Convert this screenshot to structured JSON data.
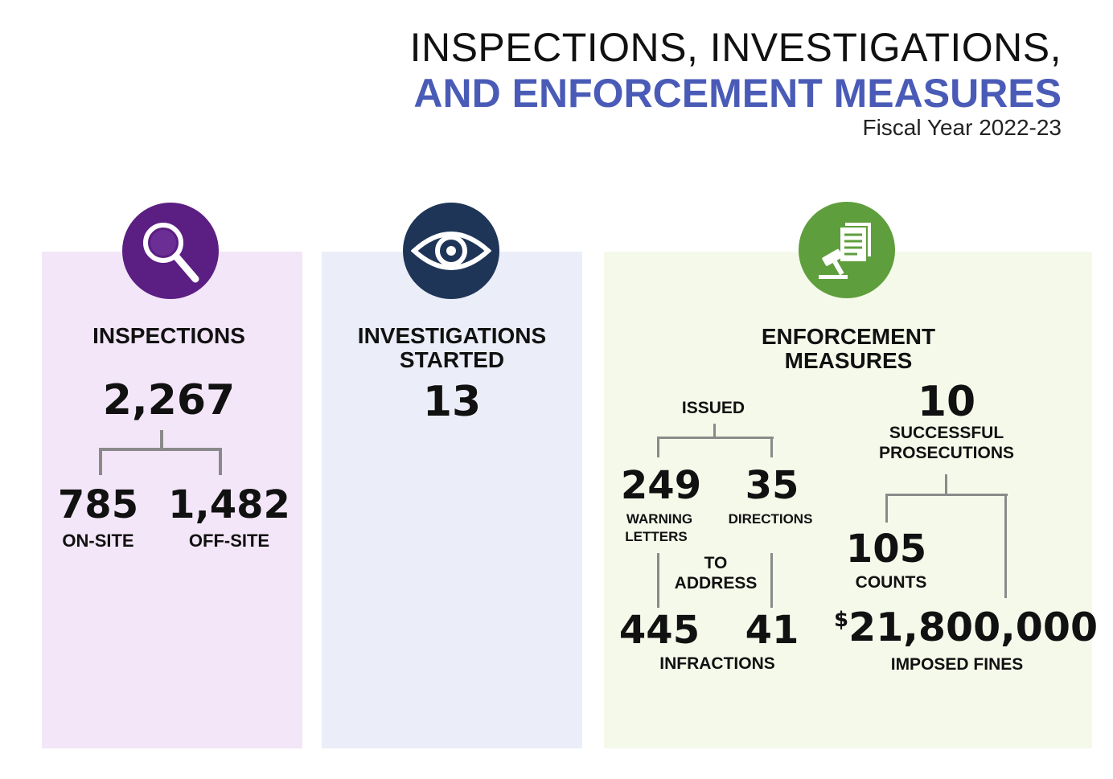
{
  "header": {
    "title_line1": "INSPECTIONS, INVESTIGATIONS,",
    "title_line2": "AND ENFORCEMENT MEASURES",
    "subtitle": "Fiscal Year 2022-23",
    "accent_color": "#4a5bb7"
  },
  "inspections": {
    "icon": "magnifying-glass-icon",
    "icon_color": "#5b1e82",
    "heading": "INSPECTIONS",
    "total": "2,267",
    "on_site_value": "785",
    "on_site_label": "ON-SITE",
    "off_site_value": "1,482",
    "off_site_label": "OFF-SITE",
    "panel_color": "#f3e6f8"
  },
  "investigations": {
    "icon": "eye-icon",
    "icon_color": "#1f3558",
    "heading_line1": "INVESTIGATIONS",
    "heading_line2": "STARTED",
    "total": "13",
    "panel_color": "#ebeef8"
  },
  "enforcement": {
    "icon": "gavel-document-icon",
    "icon_color": "#5f9e3c",
    "heading_line1": "ENFORCEMENT",
    "heading_line2": "MEASURES",
    "issued_label": "ISSUED",
    "warning_value": "249",
    "warning_label_line1": "WARNING",
    "warning_label_line2": "LETTERS",
    "directions_value": "35",
    "directions_label": "DIRECTIONS",
    "to_address_line1": "TO",
    "to_address_line2": "ADDRESS",
    "infractions_value_1": "445",
    "infractions_value_2": "41",
    "infractions_label": "INFRACTIONS",
    "prosecutions_value": "10",
    "prosecutions_label_line1": "SUCCESSFUL",
    "prosecutions_label_line2": "PROSECUTIONS",
    "counts_value": "105",
    "counts_label": "COUNTS",
    "fines_currency": "$",
    "fines_value": "21,800,000",
    "fines_label": "IMPOSED FINES",
    "panel_color": "#f5f9ea"
  }
}
